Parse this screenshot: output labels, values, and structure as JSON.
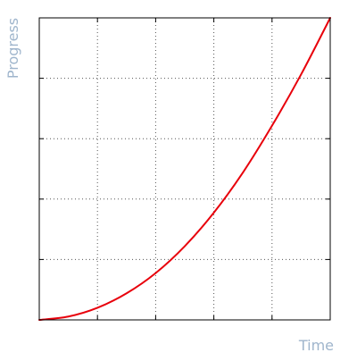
{
  "chart_data": {
    "type": "line",
    "title": "",
    "xlabel": "Time",
    "ylabel": "Progress",
    "xlim": [
      0,
      1
    ],
    "ylim": [
      0,
      1
    ],
    "grid": true,
    "x_ticks": [
      0,
      0.2,
      0.4,
      0.6,
      0.8,
      1.0
    ],
    "y_ticks": [
      0,
      0.2,
      0.4,
      0.6,
      0.8,
      1.0
    ],
    "show_tick_labels": false,
    "series": [
      {
        "color": "#e8000b",
        "x": [
          0,
          0.1,
          0.2,
          0.3,
          0.4,
          0.5,
          0.6,
          0.7,
          0.8,
          0.9,
          1.0
        ],
        "y": [
          0,
          0.011,
          0.04,
          0.088,
          0.155,
          0.244,
          0.355,
          0.488,
          0.643,
          0.813,
          1.0
        ]
      }
    ]
  },
  "colors": {
    "axis_label": "#9fb5cc",
    "frame": "#000000",
    "grid": "#555555",
    "line": "#e8000b"
  }
}
